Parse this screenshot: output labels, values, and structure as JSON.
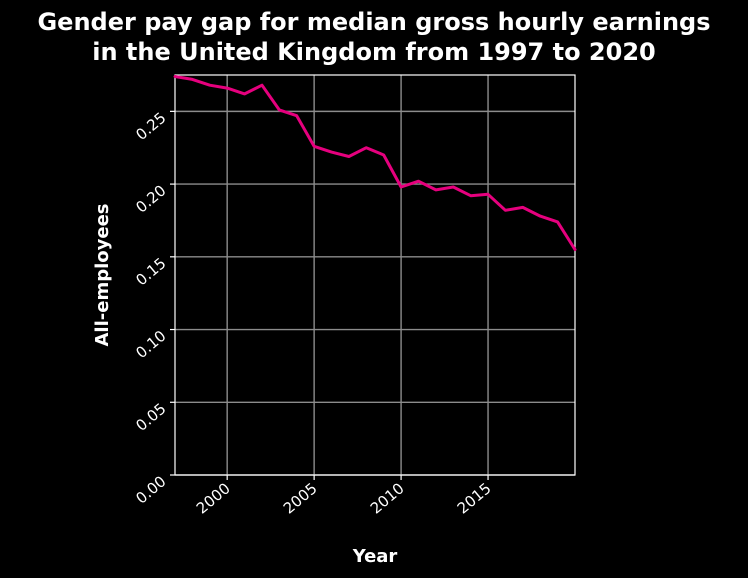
{
  "chart_data": {
    "type": "line",
    "title": "Gender pay gap for median gross hourly earnings in the United Kingdom from 1997 to 2020",
    "title_lines": [
      "Gender pay gap for median gross hourly earnings",
      "in the United Kingdom from 1997 to 2020"
    ],
    "xlabel": "Year",
    "ylabel": "All-employees",
    "xlim": [
      1997,
      2020
    ],
    "ylim": [
      0,
      0.275
    ],
    "x_ticks": [
      2000,
      2005,
      2010,
      2015
    ],
    "y_ticks": [
      0.0,
      0.05,
      0.1,
      0.15,
      0.2,
      0.25
    ],
    "x_tick_labels": [
      "2000",
      "2005",
      "2010",
      "2015"
    ],
    "y_tick_labels": [
      "0.00",
      "0.05",
      "0.10",
      "0.15",
      "0.20",
      "0.25"
    ],
    "grid": true,
    "line_color": "#e6007e",
    "x": [
      1997,
      1998,
      1999,
      2000,
      2001,
      2002,
      2003,
      2004,
      2005,
      2006,
      2007,
      2008,
      2009,
      2010,
      2011,
      2012,
      2013,
      2014,
      2015,
      2016,
      2017,
      2018,
      2019,
      2020
    ],
    "values": [
      0.274,
      0.272,
      0.268,
      0.266,
      0.262,
      0.268,
      0.251,
      0.247,
      0.226,
      0.222,
      0.219,
      0.225,
      0.22,
      0.198,
      0.202,
      0.196,
      0.198,
      0.192,
      0.193,
      0.182,
      0.184,
      0.178,
      0.174,
      0.155
    ]
  }
}
